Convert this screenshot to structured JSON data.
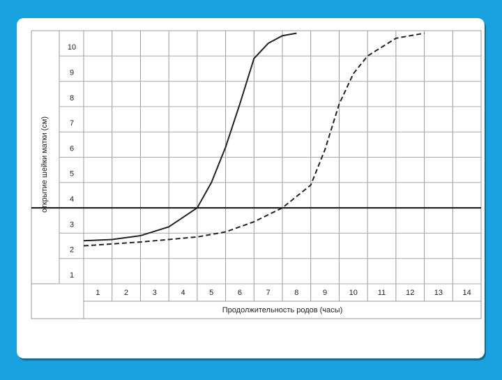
{
  "chart_data": {
    "type": "line",
    "x_label": "Продолжительность родов (часы)",
    "y_label": "открытие шейки матки (см)",
    "xlim": [
      0,
      14
    ],
    "xticks": [
      {
        "value": 0.5,
        "label": "1"
      },
      {
        "value": 1.5,
        "label": "2"
      },
      {
        "value": 2.5,
        "label": "3"
      },
      {
        "value": 3.5,
        "label": "4"
      },
      {
        "value": 4.5,
        "label": "5"
      },
      {
        "value": 5.5,
        "label": "6"
      },
      {
        "value": 6.5,
        "label": "7"
      },
      {
        "value": 7.5,
        "label": "8"
      },
      {
        "value": 8.5,
        "label": "9"
      },
      {
        "value": 9.5,
        "label": "10"
      },
      {
        "value": 10.5,
        "label": "11"
      },
      {
        "value": 11.5,
        "label": "12"
      },
      {
        "value": 12.5,
        "label": "13"
      },
      {
        "value": 13.5,
        "label": "14"
      }
    ],
    "ylim": [
      1,
      11
    ],
    "yticks": [
      1,
      2,
      3,
      4,
      5,
      6,
      7,
      8,
      9,
      10
    ],
    "reference_line": 4,
    "grid": true,
    "series": [
      {
        "style": "solid",
        "color": "#222222",
        "x": [
          0,
          1,
          2,
          3,
          4,
          4.5,
          5,
          5.5,
          6,
          6.5,
          7,
          7.5
        ],
        "values": [
          2.7,
          2.75,
          2.9,
          3.25,
          4,
          5,
          6.4,
          8.1,
          9.9,
          10.5,
          10.8,
          10.9
        ]
      },
      {
        "style": "dashed",
        "color": "#222222",
        "x": [
          0,
          2,
          4,
          5,
          6,
          7,
          8,
          8.5,
          9,
          9.5,
          10,
          11,
          12
        ],
        "values": [
          2.5,
          2.65,
          2.85,
          3.05,
          3.45,
          4,
          4.9,
          6.3,
          8.1,
          9.3,
          10,
          10.7,
          10.9
        ]
      }
    ]
  }
}
